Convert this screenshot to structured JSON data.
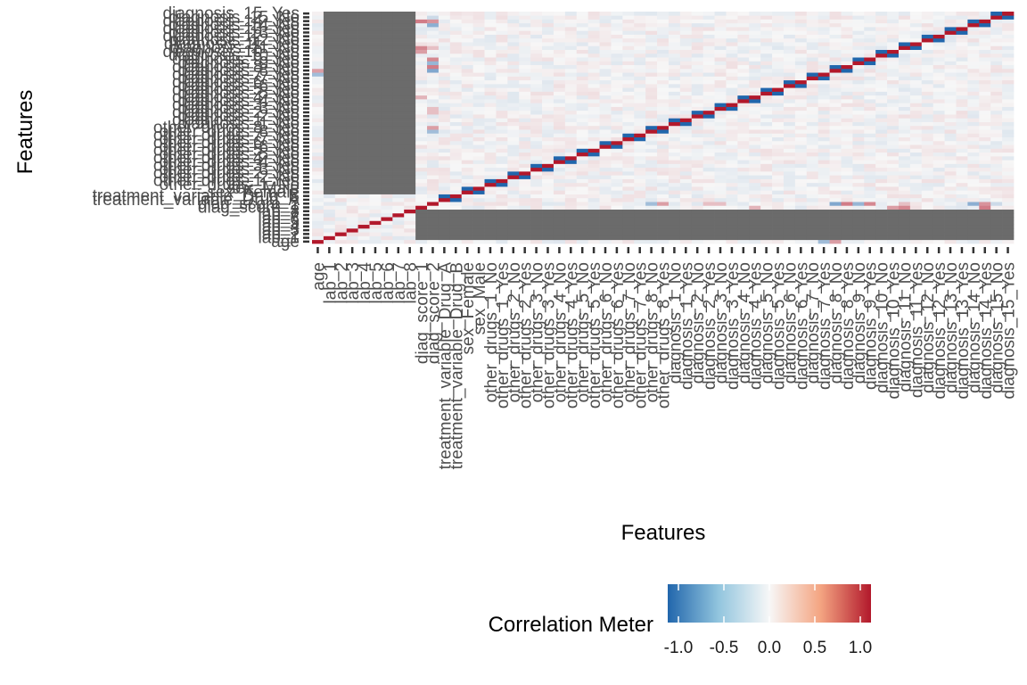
{
  "chart_data": {
    "type": "heatmap",
    "title": "",
    "xlabel": "Features",
    "ylabel": "Features",
    "features": [
      "age",
      "lab_1",
      "lab_2",
      "lab_3",
      "lab_4",
      "lab_5",
      "lab_6",
      "lab_7",
      "lab_8",
      "diag_score_1",
      "diag_score_2",
      "treatment_variable_Drug_A",
      "treatment_variable_Drug_B",
      "sex_Female",
      "sex_Male",
      "other_drugs_1_No",
      "other_drugs_1_Yes",
      "other_drugs_2_No",
      "other_drugs_2_Yes",
      "other_drugs_3_No",
      "other_drugs_3_Yes",
      "other_drugs_4_No",
      "other_drugs_4_Yes",
      "other_drugs_5_No",
      "other_drugs_5_Yes",
      "other_drugs_6_No",
      "other_drugs_6_Yes",
      "other_drugs_7_No",
      "other_drugs_7_Yes",
      "other_drugs_8_No",
      "other_drugs_8_Yes",
      "diagnosis_1_No",
      "diagnosis_1_Yes",
      "diagnosis_2_No",
      "diagnosis_2_Yes",
      "diagnosis_3_No",
      "diagnosis_3_Yes",
      "diagnosis_4_No",
      "diagnosis_4_Yes",
      "diagnosis_5_No",
      "diagnosis_5_Yes",
      "diagnosis_6_No",
      "diagnosis_6_Yes",
      "diagnosis_7_No",
      "diagnosis_7_Yes",
      "diagnosis_8_No",
      "diagnosis_8_Yes",
      "diagnosis_9_No",
      "diagnosis_9_Yes",
      "diagnosis_10_No",
      "diagnosis_10_Yes",
      "diagnosis_11_No",
      "diagnosis_11_Yes",
      "diagnosis_12_No",
      "diagnosis_12_Yes",
      "diagnosis_13_No",
      "diagnosis_13_Yes",
      "diagnosis_14_No",
      "diagnosis_14_Yes",
      "diagnosis_15_No",
      "diagnosis_15_Yes"
    ],
    "value_range": [
      -1,
      1
    ],
    "diagonal_value": 1.0,
    "paired_dummy_value": -1.0,
    "na_color": "#6b6b6b",
    "na_blocks": [
      {
        "rows": [
          13,
          60
        ],
        "cols": [
          1,
          8
        ],
        "note": "lab_1..lab_8 columns missing for rows from sex_Female upward"
      },
      {
        "rows": [
          1,
          8
        ],
        "cols": [
          9,
          60
        ],
        "note": "lab_1..lab_8 rows missing for columns from diag_score_1 rightward"
      }
    ],
    "notable_values": [
      {
        "row": "diagnosis_14_Yes",
        "col": "diag_score_1",
        "value": 0.55
      },
      {
        "row": "diagnosis_11_No",
        "col": "diag_score_1",
        "value": 0.5
      },
      {
        "row": "diagnosis_10_Yes",
        "col": "diag_score_1",
        "value": 0.4
      },
      {
        "row": "diagnosis_4_Yes",
        "col": "diag_score_1",
        "value": 0.3
      },
      {
        "row": "diagnosis_4_Yes",
        "col": "lab_1",
        "value": -0.3
      },
      {
        "row": "diagnosis_4_No",
        "col": "lab_1",
        "value": 0.3
      },
      {
        "row": "diag_score_2",
        "col": "diagnosis_8_No",
        "value": -0.55
      },
      {
        "row": "diag_score_2",
        "col": "diagnosis_8_Yes",
        "value": 0.55
      },
      {
        "row": "diag_score_2",
        "col": "diagnosis_9_No",
        "value": -0.45
      },
      {
        "row": "diag_score_2",
        "col": "diagnosis_9_Yes",
        "value": 0.5
      },
      {
        "row": "diag_score_2",
        "col": "diagnosis_14_No",
        "value": -0.5
      },
      {
        "row": "diag_score_2",
        "col": "diagnosis_14_Yes",
        "value": 0.45
      },
      {
        "row": "diag_score_2",
        "col": "other_drugs_8_No",
        "value": -0.4
      },
      {
        "row": "diag_score_2",
        "col": "other_drugs_8_Yes",
        "value": 0.4
      },
      {
        "row": "diag_score_2",
        "col": "diagnosis_2_Yes",
        "value": 0.25
      },
      {
        "row": "diag_score_2",
        "col": "diagnosis_3_No",
        "value": 0.25
      },
      {
        "row": "diag_score_2",
        "col": "diagnosis_11_No",
        "value": 0.25
      },
      {
        "row": "diag_score_2",
        "col": "diagnosis_15_No",
        "value": -0.2
      },
      {
        "row": "age",
        "col": "diagnosis_7_Yes",
        "value": -0.4
      },
      {
        "row": "age",
        "col": "diagnosis_8_No",
        "value": 0.4
      }
    ],
    "legend": {
      "title": "Correlation Meter",
      "placement": "bottom",
      "ticks": [
        "-1.0",
        "-0.5",
        "0.0",
        "0.5",
        "1.0"
      ],
      "tick_values": [
        -1,
        -0.5,
        0,
        0.5,
        1
      ],
      "colors": {
        "low": "#2166ac",
        "mid": "#f7f7f7",
        "high": "#b2182b"
      }
    }
  }
}
